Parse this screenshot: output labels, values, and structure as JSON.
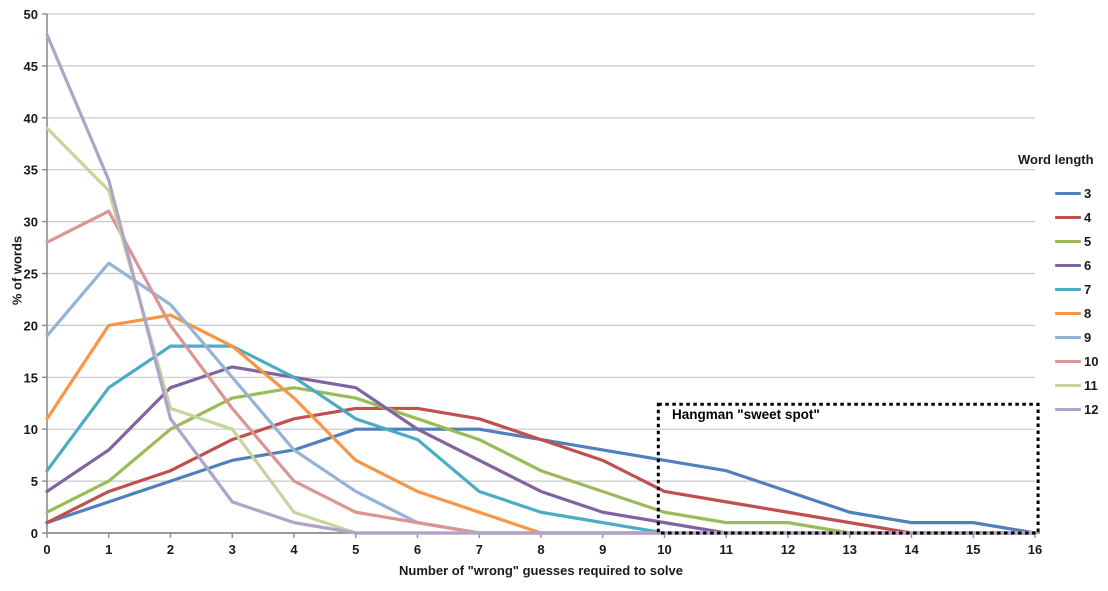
{
  "chart_data": {
    "type": "line",
    "title": "",
    "xlabel": "Number of \"wrong\" guesses required to solve",
    "ylabel": "% of words",
    "legend_title": "Word length",
    "legend_position": "right",
    "grid": "horizontal-only",
    "background": "#ffffff",
    "gridline_color": "#c9c9c9",
    "axis_color": "#8c8c8c",
    "text_color": "#1a1a1a",
    "xlim": [
      0,
      16
    ],
    "ylim": [
      0,
      50
    ],
    "xtick_step": 1,
    "ytick_step": 5,
    "x": [
      0,
      1,
      2,
      3,
      4,
      5,
      6,
      7,
      8,
      9,
      10,
      11,
      12,
      13,
      14,
      15,
      16
    ],
    "series": [
      {
        "name": "3",
        "color": "#4F81BD",
        "values": [
          1,
          3,
          5,
          7,
          8,
          10,
          10,
          10,
          9,
          8,
          7,
          6,
          4,
          2,
          1,
          1,
          0
        ]
      },
      {
        "name": "4",
        "color": "#C0504D",
        "values": [
          1,
          4,
          6,
          9,
          11,
          12,
          12,
          11,
          9,
          7,
          4,
          3,
          2,
          1,
          0,
          0,
          0
        ]
      },
      {
        "name": "5",
        "color": "#9BBB59",
        "values": [
          2,
          5,
          10,
          13,
          14,
          13,
          11,
          9,
          6,
          4,
          2,
          1,
          1,
          0,
          0,
          0,
          0
        ]
      },
      {
        "name": "6",
        "color": "#8064A2",
        "values": [
          4,
          8,
          14,
          16,
          15,
          14,
          10,
          7,
          4,
          2,
          1,
          0,
          0,
          0,
          0,
          0,
          0
        ]
      },
      {
        "name": "7",
        "color": "#4BACC6",
        "values": [
          6,
          14,
          18,
          18,
          15,
          11,
          9,
          4,
          2,
          1,
          0,
          0,
          0,
          0,
          0,
          0,
          0
        ]
      },
      {
        "name": "8",
        "color": "#F79646",
        "values": [
          11,
          20,
          21,
          18,
          13,
          7,
          4,
          2,
          0,
          0,
          0,
          0,
          0,
          0,
          0,
          0,
          0
        ]
      },
      {
        "name": "9",
        "color": "#95B3D7",
        "values": [
          19,
          26,
          22,
          15,
          8,
          4,
          1,
          0,
          0,
          0,
          0,
          0,
          0,
          0,
          0,
          0,
          0
        ]
      },
      {
        "name": "10",
        "color": "#D99694",
        "values": [
          28,
          31,
          20,
          12,
          5,
          2,
          1,
          0,
          0,
          0,
          0,
          0,
          0,
          0,
          0,
          0,
          0
        ]
      },
      {
        "name": "11",
        "color": "#C3D69B",
        "values": [
          39,
          33,
          12,
          10,
          2,
          0,
          0,
          0,
          0,
          0,
          0,
          0,
          0,
          0,
          0,
          0,
          0
        ]
      },
      {
        "name": "12",
        "color": "#B3A2C7",
        "values": [
          48,
          34,
          11,
          3,
          1,
          0,
          0,
          0,
          0,
          0,
          0,
          0,
          0,
          0,
          0,
          0,
          0
        ]
      }
    ],
    "annotation": {
      "text": "Hangman \"sweet spot\"",
      "style": "dotted-box",
      "box_color": "#000000",
      "x_range": [
        9.9,
        16.05
      ],
      "y_range": [
        0,
        12.4
      ]
    }
  }
}
